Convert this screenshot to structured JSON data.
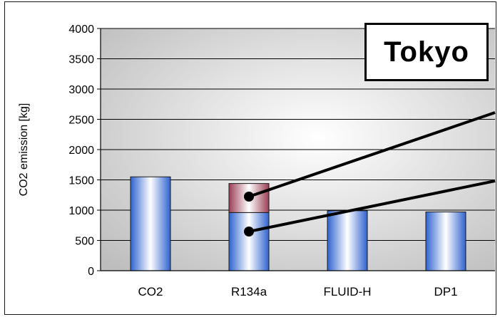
{
  "chart_data": {
    "type": "bar",
    "title": "Tokyo",
    "ylabel": "CO2 emission [kg]",
    "xlabel": "",
    "ylim": [
      0,
      4000
    ],
    "yticks": [
      0,
      500,
      1000,
      1500,
      2000,
      2500,
      3000,
      3500,
      4000
    ],
    "categories": [
      "CO2",
      "R134a",
      "FLUID-H",
      "DP1"
    ],
    "stacked": true,
    "grid": true,
    "series": [
      {
        "values": [
          1550,
          960,
          990,
          970
        ],
        "color": "#3a6fd8"
      },
      {
        "values": [
          0,
          480,
          0,
          0
        ],
        "color": "#9c4a5c"
      }
    ]
  }
}
